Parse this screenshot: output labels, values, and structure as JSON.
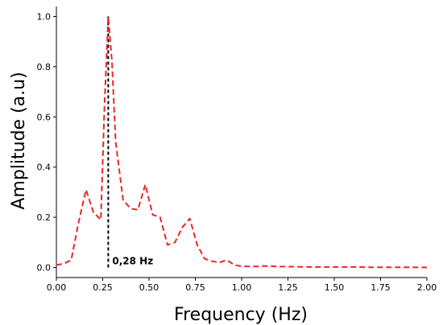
{
  "chart_data": {
    "type": "line",
    "xlabel": "Frequency (Hz)",
    "ylabel": "Amplitude (a.u)",
    "xlim": [
      0,
      2.0
    ],
    "ylim": [
      -0.04,
      1.04
    ],
    "xticks": [
      0,
      0.25,
      0.5,
      0.75,
      1.0,
      1.25,
      1.5,
      1.75,
      2.0
    ],
    "xtick_labels": [
      "0.00",
      "0.25",
      "0.50",
      "0.75",
      "1.00",
      "1.25",
      "1.50",
      "1.75",
      "2.00"
    ],
    "yticks": [
      0,
      0.2,
      0.4,
      0.6,
      0.8,
      1.0
    ],
    "ytick_labels": [
      "0.0",
      "0.2",
      "0.4",
      "0.6",
      "0.8",
      "1.0"
    ],
    "grid": false,
    "series": [
      {
        "color": "#e8262a",
        "line_style": "dashed",
        "x": [
          0,
          0.04,
          0.08,
          0.12,
          0.16,
          0.2,
          0.24,
          0.26,
          0.28,
          0.3,
          0.32,
          0.36,
          0.4,
          0.44,
          0.48,
          0.52,
          0.56,
          0.6,
          0.64,
          0.68,
          0.72,
          0.76,
          0.8,
          0.84,
          0.88,
          0.92,
          0.96,
          1.0,
          1.04,
          1.08,
          1.12,
          1.2,
          1.3,
          1.4,
          1.5,
          1.6,
          1.7,
          1.8,
          1.9,
          2.0
        ],
        "y": [
          0.01,
          0.015,
          0.03,
          0.18,
          0.31,
          0.22,
          0.19,
          0.65,
          1.0,
          0.82,
          0.5,
          0.27,
          0.235,
          0.23,
          0.33,
          0.21,
          0.2,
          0.09,
          0.1,
          0.16,
          0.195,
          0.09,
          0.035,
          0.025,
          0.02,
          0.03,
          0.01,
          0.005,
          0.004,
          0.004,
          0.006,
          0.004,
          0.003,
          0.002,
          0.002,
          0.002,
          0.001,
          0.001,
          0.001,
          0.0
        ]
      }
    ],
    "annotations": [
      {
        "type": "vline",
        "x": 0.28,
        "y_from": 0,
        "y_to": 1.0,
        "color": "#000000",
        "line_style": "dashed",
        "label": "0,28 Hz"
      }
    ]
  }
}
